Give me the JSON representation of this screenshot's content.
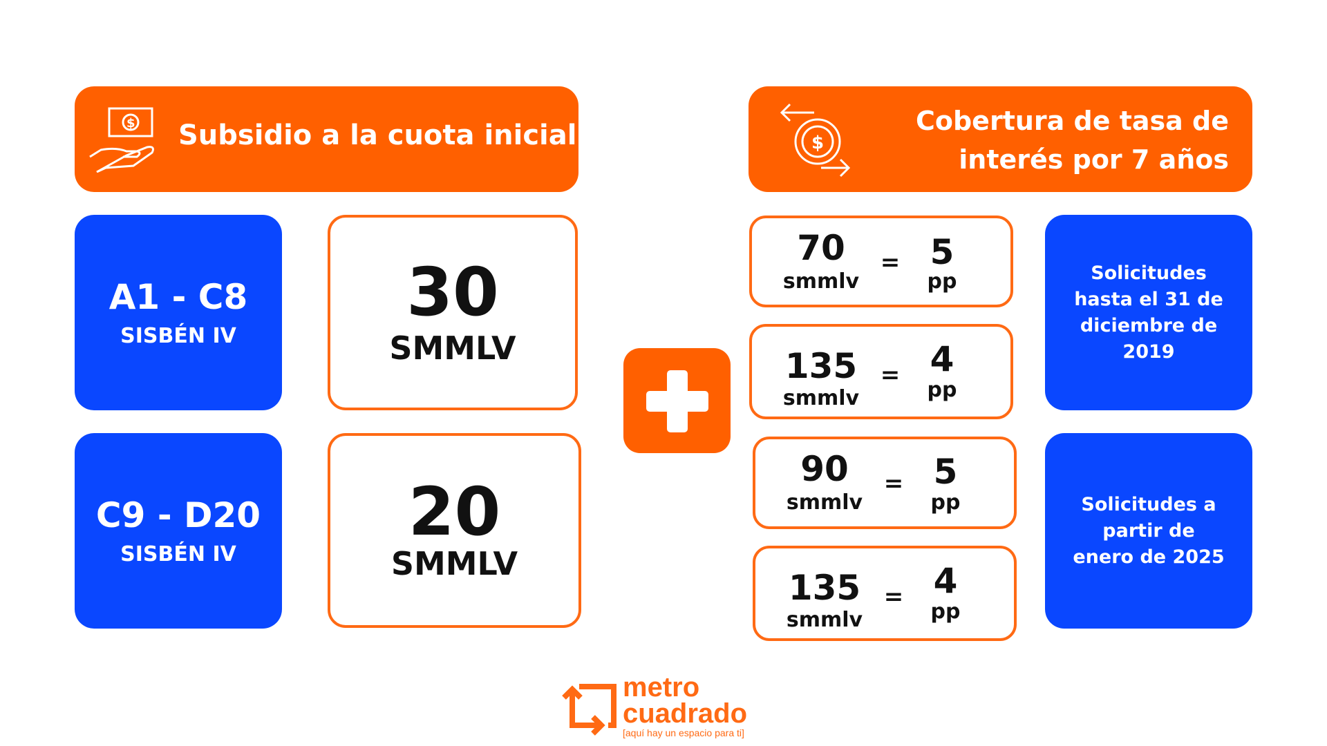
{
  "left_header": {
    "title": "Subsidio a la cuota inicial",
    "icon": "money-hand-icon"
  },
  "right_header": {
    "title_line1": "Cobertura de tasa de",
    "title_line2": "interés por 7 años",
    "icon": "dollar-exchange-icon"
  },
  "subsidies": [
    {
      "range": "A1 - C8",
      "group": "SISBÉN IV",
      "amount": "30",
      "unit": "SMMLV"
    },
    {
      "range": "C9 - D20",
      "group": "SISBÉN IV",
      "amount": "20",
      "unit": "SMMLV"
    }
  ],
  "plus_icon": "plus-icon",
  "coverage": [
    {
      "value": "70",
      "unit": "smmlv",
      "sign": "=",
      "points": "5",
      "points_unit": "pp"
    },
    {
      "value": "135",
      "unit": "smmlv",
      "sign": "=",
      "points": "4",
      "points_unit": "pp"
    },
    {
      "value": "90",
      "unit": "smmlv",
      "sign": "=",
      "points": "5",
      "points_unit": "pp"
    },
    {
      "value": "135",
      "unit": "smmlv",
      "sign": "=",
      "points": "4",
      "points_unit": "pp"
    }
  ],
  "periods": [
    {
      "text": "Solicitudes hasta el 31 de diciembre de 2019"
    },
    {
      "text": "Solicitudes a partir de enero de 2025"
    }
  ],
  "logo": {
    "line1": "metro",
    "line2": "cuadrado",
    "tagline": "[aquí hay un espacio para ti]"
  },
  "colors": {
    "orange": "#FF6000",
    "blue": "#0A47FF"
  }
}
